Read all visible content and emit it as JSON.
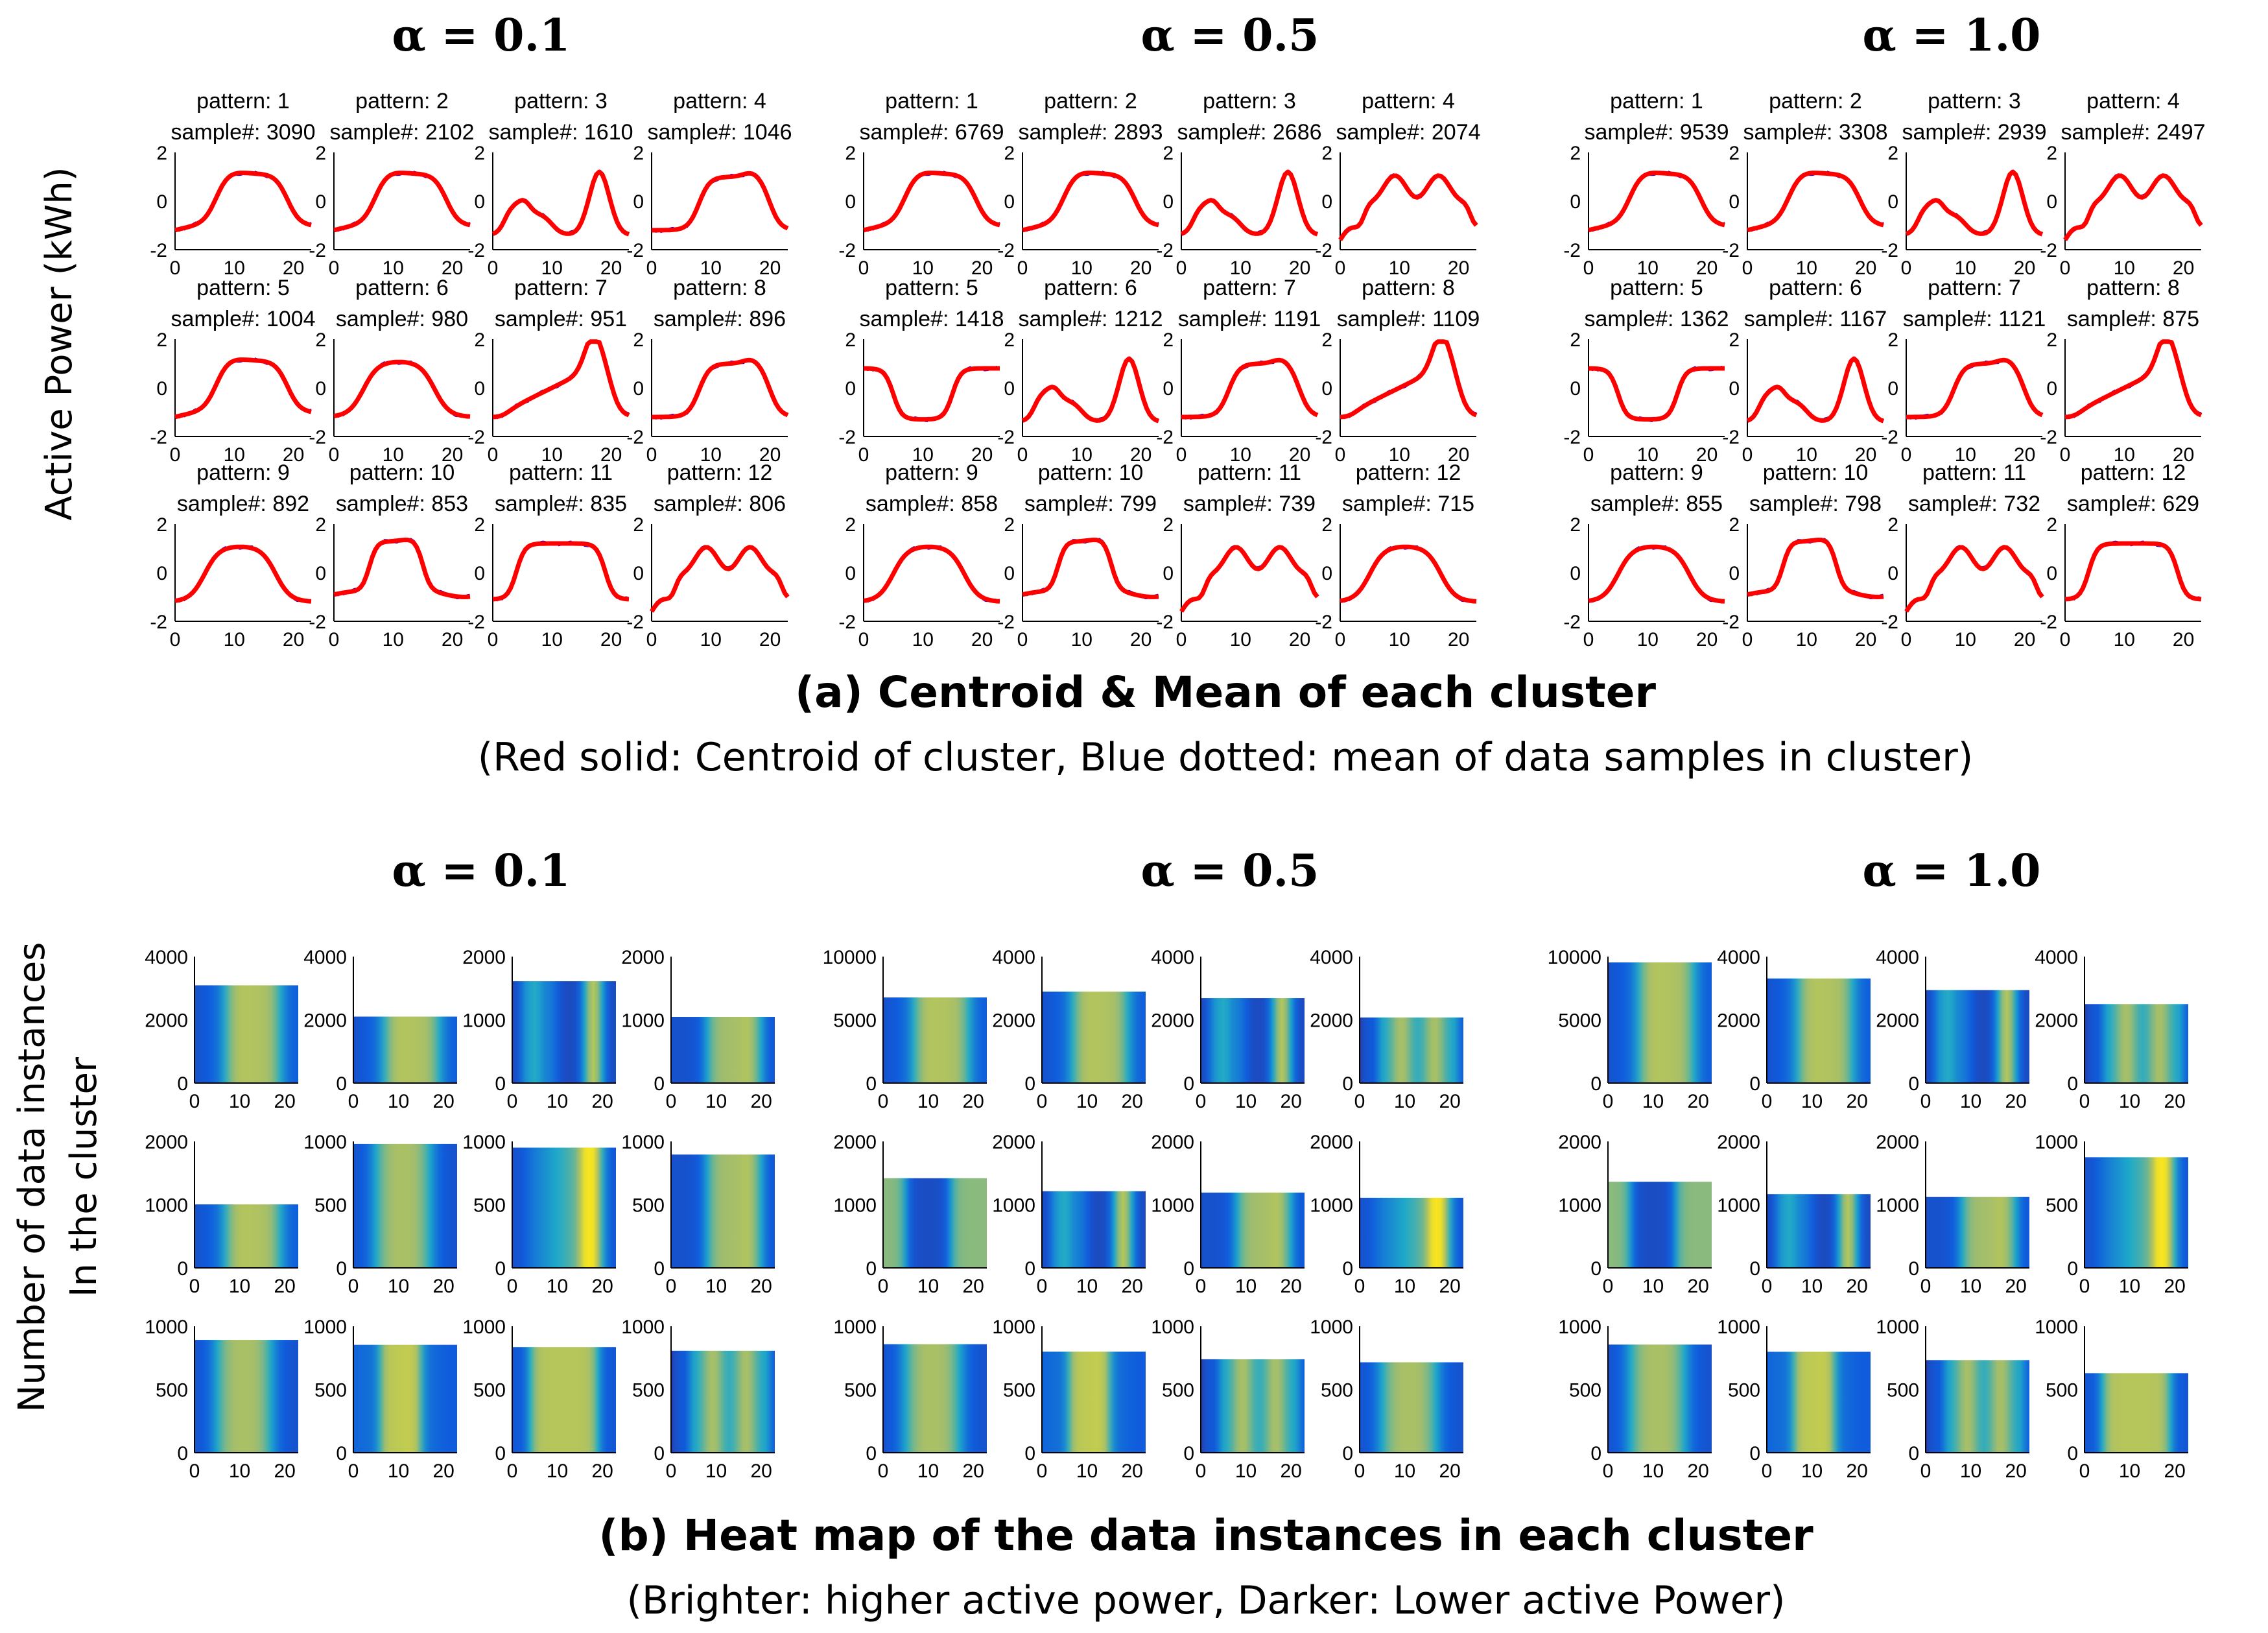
{
  "figure": {
    "ylabel_a": "Active Power (kWh)",
    "ylabel_b_line1": "Number of data instances",
    "ylabel_b_line2": "In the cluster",
    "caption_a_title": "(a) Centroid & Mean of each cluster",
    "caption_a_sub": "(Red solid: Centroid of cluster, Blue dotted: mean of data samples in cluster)",
    "caption_b_title": "(b) Heat map of the data instances in each cluster",
    "caption_b_sub": "(Brighter: higher active power, Darker: Lower active Power)",
    "colors": {
      "centroid": "#ff0000",
      "mean": "#0000ff",
      "heat_low": "#352a87",
      "heat_mid": "#1fa9c9",
      "heat_high": "#f9e51f"
    }
  },
  "chart_data": [
    {
      "type": "line",
      "part": "a",
      "alpha_label": "α = 0.1",
      "xticks": [
        0,
        10,
        20
      ],
      "ylim": [
        -2,
        2
      ],
      "yticks": [
        -2,
        0,
        2
      ],
      "panels": [
        {
          "pattern": "pattern: 1",
          "samples": "sample#: 3090",
          "shape": "day"
        },
        {
          "pattern": "pattern: 2",
          "samples": "sample#: 2102",
          "shape": "day"
        },
        {
          "pattern": "pattern: 3",
          "samples": "sample#: 1610",
          "shape": "twin"
        },
        {
          "pattern": "pattern: 4",
          "samples": "sample#: 1046",
          "shape": "late"
        },
        {
          "pattern": "pattern: 5",
          "samples": "sample#: 1004",
          "shape": "day"
        },
        {
          "pattern": "pattern: 6",
          "samples": "sample#: 980",
          "shape": "hump"
        },
        {
          "pattern": "pattern: 7",
          "samples": "sample#: 951",
          "shape": "ramp"
        },
        {
          "pattern": "pattern: 8",
          "samples": "sample#: 896",
          "shape": "late"
        },
        {
          "pattern": "pattern: 9",
          "samples": "sample#: 892",
          "shape": "hump"
        },
        {
          "pattern": "pattern: 10",
          "samples": "sample#: 853",
          "shape": "mid"
        },
        {
          "pattern": "pattern: 11",
          "samples": "sample#: 835",
          "shape": "long"
        },
        {
          "pattern": "pattern: 12",
          "samples": "sample#: 806",
          "shape": "wavy"
        }
      ]
    },
    {
      "type": "line",
      "part": "a",
      "alpha_label": "α = 0.5",
      "xticks": [
        0,
        10,
        20
      ],
      "ylim": [
        -2,
        2
      ],
      "yticks": [
        -2,
        0,
        2
      ],
      "panels": [
        {
          "pattern": "pattern: 1",
          "samples": "sample#: 6769",
          "shape": "day"
        },
        {
          "pattern": "pattern: 2",
          "samples": "sample#: 2893",
          "shape": "day"
        },
        {
          "pattern": "pattern: 3",
          "samples": "sample#: 2686",
          "shape": "twin"
        },
        {
          "pattern": "pattern: 4",
          "samples": "sample#: 2074",
          "shape": "wavy"
        },
        {
          "pattern": "pattern: 5",
          "samples": "sample#: 1418",
          "shape": "inverse"
        },
        {
          "pattern": "pattern: 6",
          "samples": "sample#: 1212",
          "shape": "twin"
        },
        {
          "pattern": "pattern: 7",
          "samples": "sample#: 1191",
          "shape": "late"
        },
        {
          "pattern": "pattern: 8",
          "samples": "sample#: 1109",
          "shape": "ramp"
        },
        {
          "pattern": "pattern: 9",
          "samples": "sample#: 858",
          "shape": "hump"
        },
        {
          "pattern": "pattern: 10",
          "samples": "sample#: 799",
          "shape": "mid"
        },
        {
          "pattern": "pattern: 11",
          "samples": "sample#: 739",
          "shape": "wavy"
        },
        {
          "pattern": "pattern: 12",
          "samples": "sample#: 715",
          "shape": "hump"
        }
      ]
    },
    {
      "type": "line",
      "part": "a",
      "alpha_label": "α = 1.0",
      "xticks": [
        0,
        10,
        20
      ],
      "ylim": [
        -2,
        2
      ],
      "yticks": [
        -2,
        0,
        2
      ],
      "panels": [
        {
          "pattern": "pattern: 1",
          "samples": "sample#: 9539",
          "shape": "day"
        },
        {
          "pattern": "pattern: 2",
          "samples": "sample#: 3308",
          "shape": "day"
        },
        {
          "pattern": "pattern: 3",
          "samples": "sample#: 2939",
          "shape": "twin"
        },
        {
          "pattern": "pattern: 4",
          "samples": "sample#: 2497",
          "shape": "wavy"
        },
        {
          "pattern": "pattern: 5",
          "samples": "sample#: 1362",
          "shape": "inverse"
        },
        {
          "pattern": "pattern: 6",
          "samples": "sample#: 1167",
          "shape": "twin"
        },
        {
          "pattern": "pattern: 7",
          "samples": "sample#: 1121",
          "shape": "late"
        },
        {
          "pattern": "pattern: 8",
          "samples": "sample#: 875",
          "shape": "ramp"
        },
        {
          "pattern": "pattern: 9",
          "samples": "sample#: 855",
          "shape": "hump"
        },
        {
          "pattern": "pattern: 10",
          "samples": "sample#: 798",
          "shape": "mid"
        },
        {
          "pattern": "pattern: 11",
          "samples": "sample#: 732",
          "shape": "wavy"
        },
        {
          "pattern": "pattern: 12",
          "samples": "sample#: 629",
          "shape": "long"
        }
      ]
    },
    {
      "type": "heatmap",
      "part": "b",
      "alpha_label": "α = 0.1",
      "xticks": [
        0,
        10,
        20
      ],
      "panels": [
        {
          "count": 3090,
          "ylim": [
            0,
            4000
          ],
          "yticks": [
            0,
            2000,
            4000
          ],
          "shape": "day"
        },
        {
          "count": 2102,
          "ylim": [
            0,
            4000
          ],
          "yticks": [
            0,
            2000,
            4000
          ],
          "shape": "day"
        },
        {
          "count": 1610,
          "ylim": [
            0,
            2000
          ],
          "yticks": [
            0,
            1000,
            2000
          ],
          "shape": "twin"
        },
        {
          "count": 1046,
          "ylim": [
            0,
            2000
          ],
          "yticks": [
            0,
            1000,
            2000
          ],
          "shape": "late"
        },
        {
          "count": 1004,
          "ylim": [
            0,
            2000
          ],
          "yticks": [
            0,
            1000,
            2000
          ],
          "shape": "day"
        },
        {
          "count": 980,
          "ylim": [
            0,
            1000
          ],
          "yticks": [
            0,
            500,
            1000
          ],
          "shape": "hump"
        },
        {
          "count": 951,
          "ylim": [
            0,
            1000
          ],
          "yticks": [
            0,
            500,
            1000
          ],
          "shape": "ramp"
        },
        {
          "count": 896,
          "ylim": [
            0,
            1000
          ],
          "yticks": [
            0,
            500,
            1000
          ],
          "shape": "late"
        },
        {
          "count": 892,
          "ylim": [
            0,
            1000
          ],
          "yticks": [
            0,
            500,
            1000
          ],
          "shape": "hump"
        },
        {
          "count": 853,
          "ylim": [
            0,
            1000
          ],
          "yticks": [
            0,
            500,
            1000
          ],
          "shape": "mid"
        },
        {
          "count": 835,
          "ylim": [
            0,
            1000
          ],
          "yticks": [
            0,
            500,
            1000
          ],
          "shape": "long"
        },
        {
          "count": 806,
          "ylim": [
            0,
            1000
          ],
          "yticks": [
            0,
            500,
            1000
          ],
          "shape": "wavy"
        }
      ]
    },
    {
      "type": "heatmap",
      "part": "b",
      "alpha_label": "α = 0.5",
      "xticks": [
        0,
        10,
        20
      ],
      "panels": [
        {
          "count": 6769,
          "ylim": [
            0,
            10000
          ],
          "yticks": [
            0,
            5000,
            10000
          ],
          "shape": "day"
        },
        {
          "count": 2893,
          "ylim": [
            0,
            4000
          ],
          "yticks": [
            0,
            2000,
            4000
          ],
          "shape": "day"
        },
        {
          "count": 2686,
          "ylim": [
            0,
            4000
          ],
          "yticks": [
            0,
            2000,
            4000
          ],
          "shape": "twin"
        },
        {
          "count": 2074,
          "ylim": [
            0,
            4000
          ],
          "yticks": [
            0,
            2000,
            4000
          ],
          "shape": "wavy"
        },
        {
          "count": 1418,
          "ylim": [
            0,
            2000
          ],
          "yticks": [
            0,
            1000,
            2000
          ],
          "shape": "inverse"
        },
        {
          "count": 1212,
          "ylim": [
            0,
            2000
          ],
          "yticks": [
            0,
            1000,
            2000
          ],
          "shape": "twin"
        },
        {
          "count": 1191,
          "ylim": [
            0,
            2000
          ],
          "yticks": [
            0,
            1000,
            2000
          ],
          "shape": "late"
        },
        {
          "count": 1109,
          "ylim": [
            0,
            2000
          ],
          "yticks": [
            0,
            1000,
            2000
          ],
          "shape": "ramp"
        },
        {
          "count": 858,
          "ylim": [
            0,
            1000
          ],
          "yticks": [
            0,
            500,
            1000
          ],
          "shape": "hump"
        },
        {
          "count": 799,
          "ylim": [
            0,
            1000
          ],
          "yticks": [
            0,
            500,
            1000
          ],
          "shape": "mid"
        },
        {
          "count": 739,
          "ylim": [
            0,
            1000
          ],
          "yticks": [
            0,
            500,
            1000
          ],
          "shape": "wavy"
        },
        {
          "count": 715,
          "ylim": [
            0,
            1000
          ],
          "yticks": [
            0,
            500,
            1000
          ],
          "shape": "hump"
        }
      ]
    },
    {
      "type": "heatmap",
      "part": "b",
      "alpha_label": "α = 1.0",
      "xticks": [
        0,
        10,
        20
      ],
      "panels": [
        {
          "count": 9539,
          "ylim": [
            0,
            10000
          ],
          "yticks": [
            0,
            5000,
            10000
          ],
          "shape": "day"
        },
        {
          "count": 3308,
          "ylim": [
            0,
            4000
          ],
          "yticks": [
            0,
            2000,
            4000
          ],
          "shape": "day"
        },
        {
          "count": 2939,
          "ylim": [
            0,
            4000
          ],
          "yticks": [
            0,
            2000,
            4000
          ],
          "shape": "twin"
        },
        {
          "count": 2497,
          "ylim": [
            0,
            4000
          ],
          "yticks": [
            0,
            2000,
            4000
          ],
          "shape": "wavy"
        },
        {
          "count": 1362,
          "ylim": [
            0,
            2000
          ],
          "yticks": [
            0,
            1000,
            2000
          ],
          "shape": "inverse"
        },
        {
          "count": 1167,
          "ylim": [
            0,
            2000
          ],
          "yticks": [
            0,
            1000,
            2000
          ],
          "shape": "twin"
        },
        {
          "count": 1121,
          "ylim": [
            0,
            2000
          ],
          "yticks": [
            0,
            1000,
            2000
          ],
          "shape": "late"
        },
        {
          "count": 875,
          "ylim": [
            0,
            1000
          ],
          "yticks": [
            0,
            500,
            1000
          ],
          "shape": "ramp"
        },
        {
          "count": 855,
          "ylim": [
            0,
            1000
          ],
          "yticks": [
            0,
            500,
            1000
          ],
          "shape": "hump"
        },
        {
          "count": 798,
          "ylim": [
            0,
            1000
          ],
          "yticks": [
            0,
            500,
            1000
          ],
          "shape": "mid"
        },
        {
          "count": 732,
          "ylim": [
            0,
            1000
          ],
          "yticks": [
            0,
            500,
            1000
          ],
          "shape": "wavy"
        },
        {
          "count": 629,
          "ylim": [
            0,
            1000
          ],
          "yticks": [
            0,
            500,
            1000
          ],
          "shape": "long"
        }
      ]
    }
  ]
}
